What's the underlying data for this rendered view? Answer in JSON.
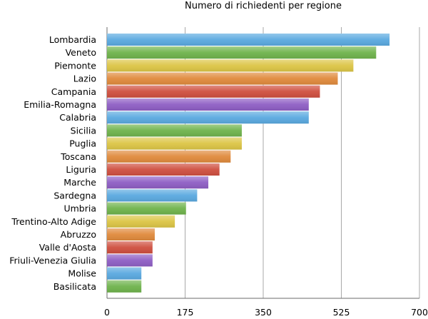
{
  "chart_data": {
    "type": "bar",
    "orientation": "horizontal",
    "title": "Numero di richiedenti per regione",
    "xlabel": "",
    "ylabel": "",
    "xlim": [
      0,
      700
    ],
    "xticks": [
      "0",
      "175",
      "350",
      "525",
      "700"
    ],
    "grid": "vertical",
    "legend": "none",
    "categories": [
      "Lombardia",
      "Veneto",
      "Piemonte",
      "Lazio",
      "Campania",
      "Emilia-Romagna",
      "Calabria",
      "Sicilia",
      "Puglia",
      "Toscana",
      "Liguria",
      "Marche",
      "Sardegna",
      "Umbria",
      "Trentino-Alto Adige",
      "Abruzzo",
      "Valle d'Aosta",
      "Friuli-Venezia Giulia",
      "Molise",
      "Basilicata"
    ],
    "values": [
      633,
      603,
      552,
      517,
      477,
      452,
      452,
      302,
      302,
      277,
      252,
      227,
      202,
      177,
      152,
      107,
      102,
      102,
      77,
      77
    ],
    "colors": [
      "#5aa9e0",
      "#6fb34c",
      "#dcc545",
      "#e08a3c",
      "#cf4f3f",
      "#8e5ec4",
      "#5aa9e0",
      "#6fb34c",
      "#dcc545",
      "#e08a3c",
      "#cf4f3f",
      "#8e5ec4",
      "#5aa9e0",
      "#6fb34c",
      "#dcc545",
      "#e08a3c",
      "#cf4f3f",
      "#8e5ec4",
      "#5aa9e0",
      "#6fb34c"
    ]
  }
}
